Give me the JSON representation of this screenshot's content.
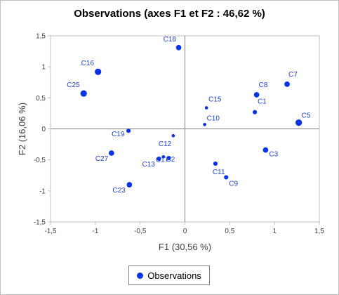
{
  "chart_data": {
    "type": "scatter",
    "title": "Observations (axes F1 et F2 : 46,62 %)",
    "xlabel": "F1 (30,56 %)",
    "ylabel": "F2 (16,06 %)",
    "xlim": [
      -1.5,
      1.5
    ],
    "ylim": [
      -1.5,
      1.5
    ],
    "xticks": [
      "-1,5",
      "-1",
      "-0,5",
      "0",
      "0,5",
      "1",
      "1,5"
    ],
    "yticks": [
      "-1,5",
      "-1",
      "-0,5",
      "0",
      "0,5",
      "1",
      "1,5"
    ],
    "color": "#0a32e6",
    "legend": {
      "label": "Observations",
      "position": "bottom"
    },
    "points": [
      {
        "label": "C18",
        "x": -0.07,
        "y": 1.31,
        "size": 5
      },
      {
        "label": "C16",
        "x": -0.97,
        "y": 0.92,
        "size": 6
      },
      {
        "label": "C25",
        "x": -1.13,
        "y": 0.57,
        "size": 6
      },
      {
        "label": "C7",
        "x": 1.14,
        "y": 0.72,
        "size": 5
      },
      {
        "label": "C8",
        "x": 0.8,
        "y": 0.55,
        "size": 5
      },
      {
        "label": "C1",
        "x": 0.78,
        "y": 0.27,
        "size": 4
      },
      {
        "label": "C15",
        "x": 0.24,
        "y": 0.34,
        "size": 3
      },
      {
        "label": "C10",
        "x": 0.22,
        "y": 0.07,
        "size": 3
      },
      {
        "label": "C5",
        "x": 1.27,
        "y": 0.1,
        "size": 6
      },
      {
        "label": "C19",
        "x": -0.63,
        "y": -0.03,
        "size": 4
      },
      {
        "label": "C12",
        "x": -0.13,
        "y": -0.11,
        "size": 3
      },
      {
        "label": "C3",
        "x": 0.9,
        "y": -0.34,
        "size": 5
      },
      {
        "label": "C27",
        "x": -0.82,
        "y": -0.39,
        "size": 5
      },
      {
        "label": "C13",
        "x": -0.29,
        "y": -0.48,
        "size": 4
      },
      {
        "label": "C17",
        "x": -0.24,
        "y": -0.45,
        "size": 3
      },
      {
        "label": "C2",
        "x": -0.18,
        "y": -0.47,
        "size": 4
      },
      {
        "label": "C11",
        "x": 0.34,
        "y": -0.56,
        "size": 4
      },
      {
        "label": "C9",
        "x": 0.46,
        "y": -0.78,
        "size": 4
      },
      {
        "label": "C23",
        "x": -0.62,
        "y": -0.9,
        "size": 5
      }
    ]
  }
}
